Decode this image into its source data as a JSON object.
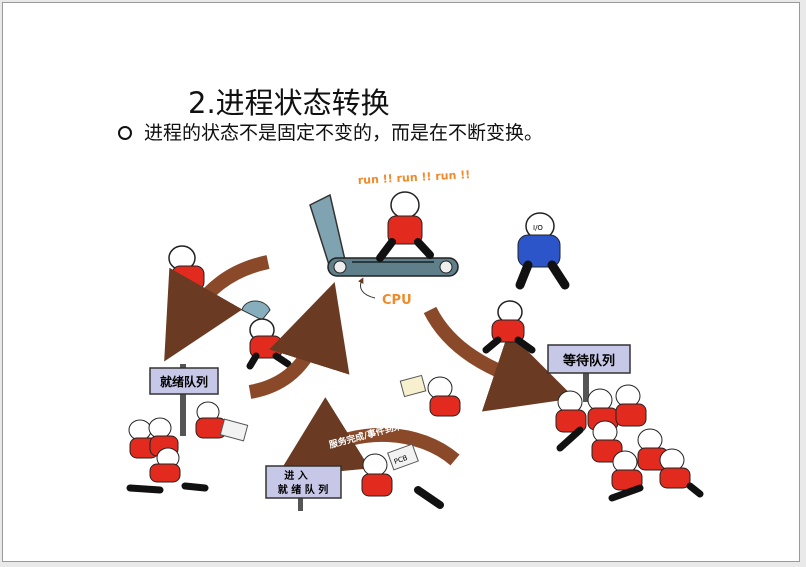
{
  "slide": {
    "title": "2.进程状态转换",
    "bullet": "进程的状态不是固定不变的，而是在不断变换。"
  },
  "illustration": {
    "run_text": "run !! run !! run !!",
    "cpu_label": "CPU",
    "ready_sign": "就绪队列",
    "waiting_sign": "等待队列",
    "enter_sign_line1": "进 入",
    "enter_sign_line2": "就 绪 队 列",
    "arrow_service_done": "服务完成/事件到来",
    "io_badge": "I/O",
    "pcb_label": "PCB",
    "colors": {
      "arrow": "#8a4a2a",
      "shirt": "#e22a1f",
      "blue_shirt": "#2b55c8",
      "sign": "#c7c7e8",
      "cpu_orange": "#f08a2a"
    }
  }
}
